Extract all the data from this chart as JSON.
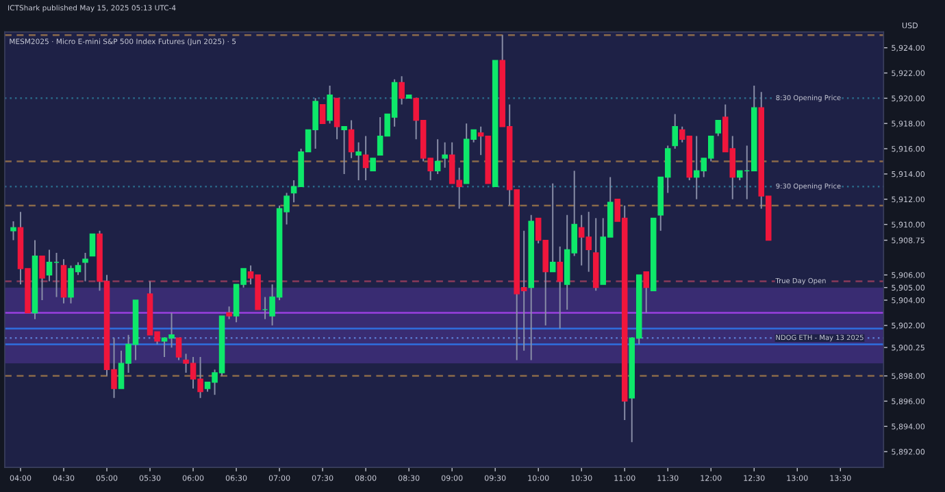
{
  "chart_data": {
    "type": "candlestick",
    "title": "MESM2025 · Micro E-mini S&P 500 Index Futures (Jun 2025) · 5",
    "subtitle": "ICTShark published May 15, 2025 05:13 UTC-4",
    "ylabel": "USD",
    "x": [
      3.9167,
      4,
      4.0833,
      4.1667,
      4.25,
      4.3333,
      4.4167,
      4.5,
      4.5833,
      4.6667,
      4.75,
      4.8333,
      4.9167,
      5,
      5.0833,
      5.1667,
      5.25,
      5.3333,
      5.5,
      5.5833,
      5.6667,
      5.75,
      5.8333,
      5.9167,
      6,
      6.0833,
      6.1667,
      6.25,
      6.3333,
      6.4167,
      6.5,
      6.5833,
      6.6667,
      6.75,
      6.8333,
      6.9167,
      7,
      7.0833,
      7.1667,
      7.25,
      7.3333,
      7.4167,
      7.5,
      7.5833,
      7.6667,
      7.75,
      7.8333,
      7.9167,
      8,
      8.0833,
      8.1667,
      8.25,
      8.3333,
      8.4167,
      8.5,
      8.5833,
      8.6667,
      8.75,
      8.8333,
      8.9167,
      9,
      9.0833,
      9.1667,
      9.25,
      9.3333,
      9.4167,
      9.5,
      9.5833,
      9.6667,
      9.75,
      9.8333,
      9.9167,
      10,
      10.0833,
      10.1667,
      10.25,
      10.3333,
      10.4167,
      10.5,
      10.5833,
      10.6667,
      10.75,
      10.8333,
      10.9167,
      11,
      11.0833,
      11.1667,
      11.25,
      11.3333,
      11.4167,
      11.5,
      11.5833,
      11.6667,
      11.75,
      11.8333,
      11.9167,
      12,
      12.0833,
      12.1667,
      12.25,
      12.3333,
      12.4167,
      12.5,
      12.5833,
      12.6667
    ],
    "ohlc": [
      [
        5909.5,
        5910.25,
        5908.75,
        5909.75
      ],
      [
        5909.75,
        5911.0,
        5905.25,
        5906.5
      ],
      [
        5906.5,
        5906.5,
        5903.0,
        5903.0
      ],
      [
        5903.0,
        5908.75,
        5902.5,
        5907.5
      ],
      [
        5907.5,
        5907.5,
        5904.0,
        5905.75
      ],
      [
        5906.0,
        5908.0,
        5905.5,
        5907.0
      ],
      [
        5907.0,
        5907.75,
        5904.25,
        5907.0
      ],
      [
        5906.75,
        5907.25,
        5903.75,
        5904.25
      ],
      [
        5904.25,
        5906.75,
        5903.75,
        5906.5
      ],
      [
        5906.25,
        5907.0,
        5906.0,
        5906.75
      ],
      [
        5907.0,
        5907.75,
        5905.5,
        5907.25
      ],
      [
        5907.5,
        5909.25,
        5907.5,
        5909.25
      ],
      [
        5909.25,
        5909.5,
        5904.75,
        5905.5
      ],
      [
        5905.5,
        5906.0,
        5898.0,
        5898.5
      ],
      [
        5898.5,
        5901.0,
        5896.25,
        5897.0
      ],
      [
        5897.0,
        5900.0,
        5897.0,
        5899.0
      ],
      [
        5899.0,
        5901.25,
        5898.25,
        5900.5
      ],
      [
        5900.5,
        5904.0,
        5899.25,
        5904.0
      ],
      [
        5904.5,
        5905.5,
        5901.25,
        5901.25
      ],
      [
        5901.5,
        5901.5,
        5900.5,
        5900.75
      ],
      [
        5900.75,
        5901.0,
        5899.5,
        5901.0
      ],
      [
        5901.0,
        5903.0,
        5900.25,
        5901.25
      ],
      [
        5901.0,
        5901.0,
        5899.25,
        5899.5
      ],
      [
        5899.25,
        5899.75,
        5898.25,
        5899.0
      ],
      [
        5899.0,
        5899.5,
        5897.0,
        5897.75
      ],
      [
        5897.75,
        5899.5,
        5896.25,
        5896.75
      ],
      [
        5897.0,
        5897.5,
        5896.75,
        5897.5
      ],
      [
        5897.5,
        5898.5,
        5896.5,
        5898.25
      ],
      [
        5898.25,
        5902.75,
        5898.0,
        5902.75
      ],
      [
        5903.0,
        5903.5,
        5902.5,
        5902.75
      ],
      [
        5902.75,
        5905.25,
        5902.25,
        5905.25
      ],
      [
        5905.25,
        5906.5,
        5905.0,
        5906.5
      ],
      [
        5906.25,
        5906.75,
        5905.25,
        5905.75
      ],
      [
        5906.0,
        5906.0,
        5903.25,
        5903.25
      ],
      [
        5903.25,
        5904.25,
        5902.5,
        5903.25
      ],
      [
        5902.75,
        5905.25,
        5902.0,
        5904.25
      ],
      [
        5904.25,
        5911.5,
        5904.0,
        5911.25
      ],
      [
        5911.0,
        5912.5,
        5910.0,
        5912.25
      ],
      [
        5912.5,
        5913.5,
        5911.75,
        5913.0
      ],
      [
        5913.0,
        5916.0,
        5913.0,
        5915.75
      ],
      [
        5915.75,
        5917.5,
        5915.75,
        5917.5
      ],
      [
        5917.5,
        5920.0,
        5916.0,
        5919.75
      ],
      [
        5919.5,
        5919.5,
        5918.0,
        5918.0
      ],
      [
        5918.25,
        5921.0,
        5918.0,
        5920.25
      ],
      [
        5920.0,
        5920.0,
        5916.75,
        5917.75
      ],
      [
        5917.5,
        5917.75,
        5914.0,
        5917.75
      ],
      [
        5917.5,
        5918.25,
        5915.25,
        5915.75
      ],
      [
        5915.5,
        5916.5,
        5913.5,
        5915.75
      ],
      [
        5915.5,
        5917.0,
        5913.5,
        5914.5
      ],
      [
        5914.25,
        5915.25,
        5914.25,
        5915.25
      ],
      [
        5915.5,
        5918.5,
        5915.5,
        5917.0
      ],
      [
        5917.0,
        5918.75,
        5917.0,
        5918.75
      ],
      [
        5918.5,
        5921.5,
        5917.75,
        5921.25
      ],
      [
        5921.25,
        5921.75,
        5919.5,
        5920.0
      ],
      [
        5920.0,
        5920.25,
        5920.0,
        5920.25
      ],
      [
        5920.0,
        5920.0,
        5916.75,
        5918.25
      ],
      [
        5918.25,
        5918.25,
        5915.0,
        5915.25
      ],
      [
        5915.25,
        5915.25,
        5913.5,
        5914.25
      ],
      [
        5914.25,
        5916.75,
        5914.0,
        5915.0
      ],
      [
        5915.25,
        5916.5,
        5914.5,
        5915.5
      ],
      [
        5915.5,
        5916.5,
        5913.25,
        5913.25
      ],
      [
        5913.5,
        5914.5,
        5911.25,
        5913.0
      ],
      [
        5913.25,
        5918.0,
        5913.25,
        5916.75
      ],
      [
        5916.75,
        5917.5,
        5916.5,
        5917.5
      ],
      [
        5917.25,
        5917.75,
        5915.5,
        5917.0
      ],
      [
        5917.0,
        5917.0,
        5913.25,
        5913.25
      ],
      [
        5913.0,
        5923.0,
        5913.0,
        5923.0
      ],
      [
        5923.0,
        5925.0,
        5917.75,
        5917.75
      ],
      [
        5917.75,
        5919.5,
        5911.5,
        5912.75
      ],
      [
        5912.75,
        5912.75,
        5899.25,
        5904.5
      ],
      [
        5905.0,
        5909.5,
        5900.0,
        5904.75
      ],
      [
        5905.0,
        5910.75,
        5899.25,
        5910.25
      ],
      [
        5910.5,
        5910.5,
        5908.5,
        5908.75
      ],
      [
        5908.75,
        5908.75,
        5902.0,
        5906.25
      ],
      [
        5906.25,
        5913.25,
        5906.25,
        5907.0
      ],
      [
        5907.0,
        5908.25,
        5901.75,
        5905.5
      ],
      [
        5905.25,
        5910.75,
        5903.25,
        5908.0
      ],
      [
        5907.75,
        5914.25,
        5907.5,
        5910.0
      ],
      [
        5909.75,
        5910.75,
        5906.75,
        5909.0
      ],
      [
        5909.0,
        5911.0,
        5906.25,
        5908.0
      ],
      [
        5907.75,
        5910.5,
        5904.75,
        5905.0
      ],
      [
        5905.25,
        5910.5,
        5905.25,
        5909.0
      ],
      [
        5909.0,
        5913.75,
        5909.0,
        5911.75
      ],
      [
        5912.0,
        5912.0,
        5910.25,
        5910.25
      ],
      [
        5910.5,
        5911.5,
        5894.5,
        5896.0
      ],
      [
        5896.25,
        5901.0,
        5892.75,
        5901.0
      ],
      [
        5901.0,
        5906.0,
        5900.5,
        5906.0
      ],
      [
        5906.25,
        5906.25,
        5903.0,
        5905.0
      ],
      [
        5904.75,
        5910.5,
        5904.75,
        5910.5
      ],
      [
        5910.75,
        5913.75,
        5909.5,
        5913.75
      ],
      [
        5913.75,
        5916.25,
        5912.5,
        5916.0
      ],
      [
        5916.25,
        5918.75,
        5916.0,
        5917.75
      ],
      [
        5917.5,
        5917.75,
        5916.5,
        5916.75
      ],
      [
        5917.0,
        5917.0,
        5913.5,
        5913.75
      ],
      [
        5913.75,
        5917.0,
        5912.0,
        5914.25
      ],
      [
        5914.25,
        5915.25,
        5913.75,
        5915.25
      ],
      [
        5915.25,
        5917.0,
        5915.0,
        5917.0
      ],
      [
        5917.25,
        5918.25,
        5917.0,
        5918.25
      ],
      [
        5918.5,
        5919.5,
        5915.75,
        5915.75
      ],
      [
        5916.0,
        5917.0,
        5912.0,
        5913.75
      ],
      [
        5913.75,
        5914.25,
        5913.5,
        5914.25
      ],
      [
        5914.25,
        5916.25,
        5912.0,
        5914.25
      ],
      [
        5914.25,
        5921.0,
        5914.25,
        5919.25
      ],
      [
        5919.25,
        5920.5,
        5911.25,
        5912.25
      ],
      [
        5912.25,
        5912.25,
        5908.75,
        5908.75
      ]
    ],
    "colors": [
      "#0ee86a",
      "#f0163c",
      "#f0163c",
      "#0ee86a",
      "#f0163c",
      "#0ee86a",
      "#0ee86a",
      "#f0163c",
      "#0ee86a",
      "#0ee86a",
      "#0ee86a",
      "#0ee86a",
      "#f0163c",
      "#f0163c",
      "#f0163c",
      "#0ee86a",
      "#0ee86a",
      "#0ee86a",
      "#f0163c",
      "#f0163c",
      "#0ee86a",
      "#0ee86a",
      "#f0163c",
      "#f0163c",
      "#f0163c",
      "#f0163c",
      "#0ee86a",
      "#0ee86a",
      "#0ee86a",
      "#f0163c",
      "#0ee86a",
      "#0ee86a",
      "#f0163c",
      "#f0163c",
      "#0ee86a",
      "#0ee86a",
      "#0ee86a",
      "#0ee86a",
      "#0ee86a",
      "#0ee86a",
      "#0ee86a",
      "#0ee86a",
      "#f0163c",
      "#0ee86a",
      "#f0163c",
      "#0ee86a",
      "#f0163c",
      "#0ee86a",
      "#f0163c",
      "#0ee86a",
      "#0ee86a",
      "#0ee86a",
      "#0ee86a",
      "#f0163c",
      "#0ee86a",
      "#f0163c",
      "#f0163c",
      "#f0163c",
      "#0ee86a",
      "#0ee86a",
      "#f0163c",
      "#f0163c",
      "#0ee86a",
      "#0ee86a",
      "#f0163c",
      "#f0163c",
      "#0ee86a",
      "#f0163c",
      "#f0163c",
      "#f0163c",
      "#f0163c",
      "#0ee86a",
      "#f0163c",
      "#f0163c",
      "#0ee86a",
      "#f0163c",
      "#0ee86a",
      "#0ee86a",
      "#f0163c",
      "#f0163c",
      "#f0163c",
      "#0ee86a",
      "#0ee86a",
      "#f0163c",
      "#f0163c",
      "#0ee86a",
      "#0ee86a",
      "#f0163c",
      "#0ee86a",
      "#0ee86a",
      "#0ee86a",
      "#0ee86a",
      "#f0163c",
      "#f0163c",
      "#0ee86a",
      "#0ee86a",
      "#0ee86a",
      "#0ee86a",
      "#f0163c",
      "#f0163c",
      "#0ee86a",
      "#0ee86a",
      "#0ee86a",
      "#f0163c",
      "#f0163c"
    ],
    "xlim": [
      3.8167,
      14.0
    ],
    "xticks": [
      {
        "value": 4,
        "label": "04:00"
      },
      {
        "value": 4.5,
        "label": "04:30"
      },
      {
        "value": 5,
        "label": "05:00"
      },
      {
        "value": 5.5,
        "label": "05:30"
      },
      {
        "value": 6,
        "label": "06:00"
      },
      {
        "value": 6.5,
        "label": "06:30"
      },
      {
        "value": 7,
        "label": "07:00"
      },
      {
        "value": 7.5,
        "label": "07:30"
      },
      {
        "value": 8,
        "label": "08:00"
      },
      {
        "value": 8.5,
        "label": "08:30"
      },
      {
        "value": 9,
        "label": "09:00"
      },
      {
        "value": 9.5,
        "label": "09:30"
      },
      {
        "value": 10,
        "label": "10:00"
      },
      {
        "value": 10.5,
        "label": "10:30"
      },
      {
        "value": 11,
        "label": "11:00"
      },
      {
        "value": 11.5,
        "label": "11:30"
      },
      {
        "value": 12,
        "label": "12:00"
      },
      {
        "value": 12.5,
        "label": "12:30"
      },
      {
        "value": 13,
        "label": "13:00"
      },
      {
        "value": 13.5,
        "label": "13:30"
      }
    ],
    "ylim": [
      5890.75,
      5925.25
    ],
    "yticks": [
      {
        "value": 5892,
        "label": "5,892.00"
      },
      {
        "value": 5894,
        "label": "5,894.00"
      },
      {
        "value": 5896,
        "label": "5,896.00"
      },
      {
        "value": 5898,
        "label": "5,898.00"
      },
      {
        "value": 5900.25,
        "label": "5,900.25"
      },
      {
        "value": 5902,
        "label": "5,902.00"
      },
      {
        "value": 5904,
        "label": "5,904.00"
      },
      {
        "value": 5905,
        "label": "5,905.00"
      },
      {
        "value": 5906,
        "label": "5,906.00"
      },
      {
        "value": 5908.75,
        "label": "5,908.75"
      },
      {
        "value": 5910,
        "label": "5,910.00"
      },
      {
        "value": 5912,
        "label": "5,912.00"
      },
      {
        "value": 5914,
        "label": "5,914.00"
      },
      {
        "value": 5916,
        "label": "5,916.00"
      },
      {
        "value": 5918,
        "label": "5,918.00"
      },
      {
        "value": 5920,
        "label": "5,920.00"
      },
      {
        "value": 5922,
        "label": "5,922.00"
      },
      {
        "value": 5924,
        "label": "5,924.00"
      }
    ],
    "ref_lines": [
      {
        "axis": "y",
        "value": 5925.0,
        "color": "#8a6a4a",
        "line_style": "dashed"
      },
      {
        "axis": "y",
        "value": 5920.0,
        "color": "#2a6a8a",
        "line_style": "dotted"
      },
      {
        "axis": "y",
        "value": 5915.0,
        "color": "#8a6a4a",
        "line_style": "dashed"
      },
      {
        "axis": "y",
        "value": 5913.0,
        "color": "#2a6a8a",
        "line_style": "dotted"
      },
      {
        "axis": "y",
        "value": 5911.5,
        "color": "#8a6a4a",
        "line_style": "dashed"
      },
      {
        "axis": "y",
        "value": 5905.5,
        "label": "True Day Open",
        "color": "#8a3a5a",
        "line_style": "dashed"
      },
      {
        "axis": "y",
        "value": 5903.0,
        "color": "#9a3fe0",
        "line_style": "solid"
      },
      {
        "axis": "y",
        "value": 5901.75,
        "color": "#2f6fe0",
        "line_style": "solid"
      },
      {
        "axis": "y",
        "value": 5901.0,
        "label": "NDOG ETH - May 13 2025",
        "color": "#5a7ad0",
        "line_style": "dotted"
      },
      {
        "axis": "y",
        "value": 5900.5,
        "color": "#2f6fe0",
        "line_style": "solid"
      },
      {
        "axis": "y",
        "value": 5898.0,
        "color": "#8a6a4a",
        "line_style": "dashed"
      }
    ],
    "annotations": [
      {
        "text": "8:30 Opening Price",
        "x": 12.75,
        "y": 5920.0
      },
      {
        "text": "9:30 Opening Price",
        "x": 12.75,
        "y": 5913.0
      }
    ],
    "bands": [
      {
        "axis": "y",
        "from": 5899.0,
        "to": 5905.0,
        "color": "#5a3aa8"
      }
    ]
  }
}
